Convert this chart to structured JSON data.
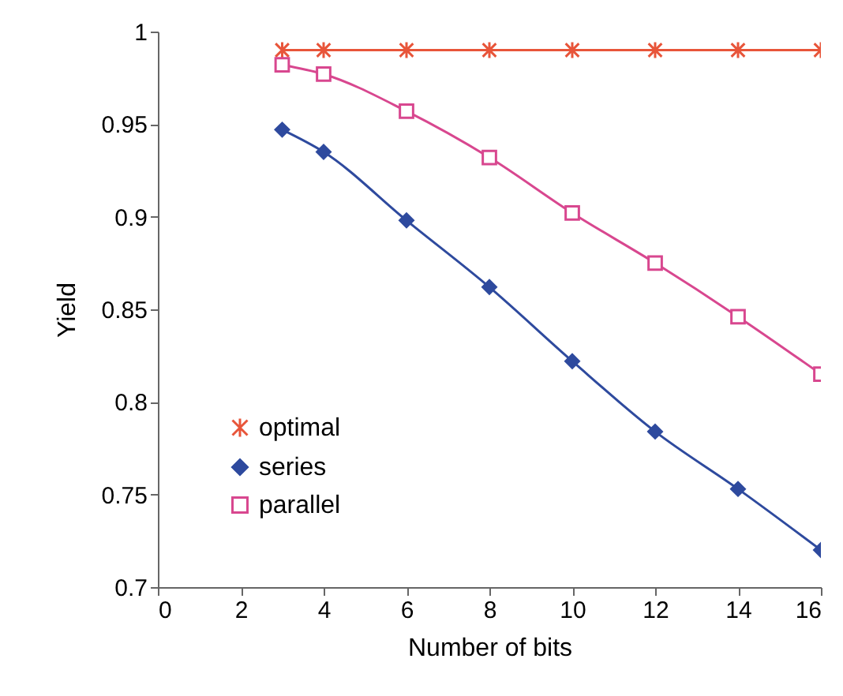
{
  "chart_data": {
    "type": "line",
    "xlabel": "Number of bits",
    "ylabel": "Yield",
    "x": [
      3,
      4,
      6,
      8,
      10,
      12,
      14,
      16
    ],
    "series": [
      {
        "name": "optimal",
        "color": "#e8553a",
        "marker": "cross",
        "values": [
          0.99,
          0.99,
          0.99,
          0.99,
          0.99,
          0.99,
          0.99,
          0.99
        ]
      },
      {
        "name": "series",
        "color": "#2e4a9e",
        "marker": "diamond",
        "values": [
          0.947,
          0.935,
          0.898,
          0.862,
          0.822,
          0.784,
          0.753,
          0.72
        ]
      },
      {
        "name": "parallel",
        "color": "#d8478f",
        "marker": "square",
        "values": [
          0.982,
          0.977,
          0.957,
          0.932,
          0.902,
          0.875,
          0.846,
          0.815
        ]
      }
    ],
    "xlim": [
      0,
      16
    ],
    "xticks": [
      0,
      2,
      4,
      6,
      8,
      10,
      12,
      14,
      16
    ],
    "ylim": [
      0.7,
      1
    ],
    "yticks": [
      0.7,
      0.75,
      0.8,
      0.85,
      0.9,
      0.95,
      1
    ],
    "grid": false,
    "legend": "bottom left",
    "line_style": "solid"
  }
}
